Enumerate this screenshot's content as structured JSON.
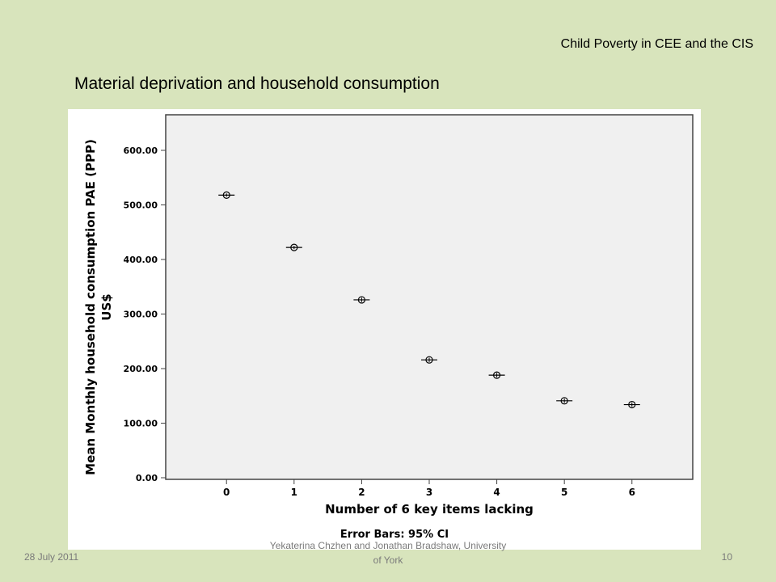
{
  "header": {
    "series_title": "Child Poverty in CEE and the CIS"
  },
  "slide": {
    "title": "Material deprivation and household consumption"
  },
  "footer": {
    "date": "28 July 2011",
    "center_lines": [
      "Yekaterina Chzhen and Jonathan Bradshaw, University",
      "of York"
    ],
    "page": "10"
  },
  "chart_data": {
    "type": "scatter",
    "x": [
      0,
      1,
      2,
      3,
      4,
      5,
      6
    ],
    "y": [
      518,
      422,
      326,
      216,
      188,
      141,
      134
    ],
    "ci_low": [
      515,
      419,
      322,
      212,
      184,
      137,
      130
    ],
    "ci_high": [
      521,
      425,
      330,
      220,
      192,
      145,
      138
    ],
    "x_ticks": [
      "0",
      "1",
      "2",
      "3",
      "4",
      "5",
      "6"
    ],
    "y_ticks": [
      "0.00",
      "100.00",
      "200.00",
      "300.00",
      "400.00",
      "500.00",
      "600.00"
    ],
    "xlabel": "Number of 6 key items lacking",
    "ylabel_lines": [
      "Mean Monthly household consumption PAE (PPP)",
      "US$"
    ],
    "note": "Error Bars: 95% CI",
    "xlim": [
      -0.9,
      6.9
    ],
    "ylim": [
      0,
      670
    ],
    "grid": false
  }
}
